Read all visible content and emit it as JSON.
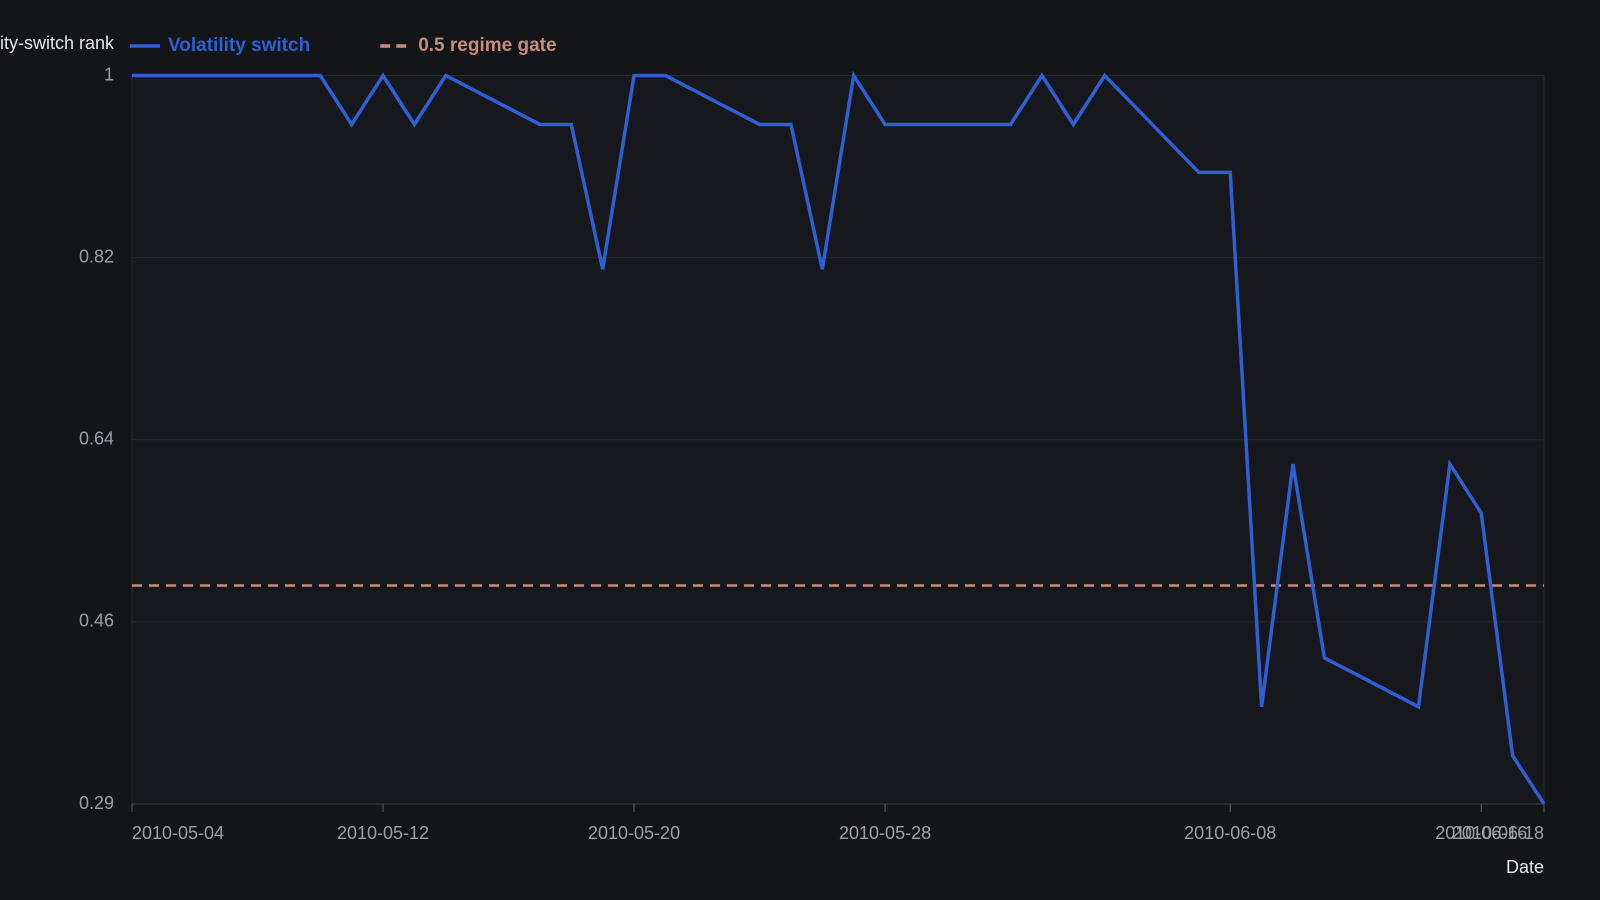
{
  "chart_data": {
    "type": "line",
    "y_label": "Volatility-switch rank",
    "x_label": "Date",
    "x": [
      "2010-05-04",
      "2010-05-05",
      "2010-05-06",
      "2010-05-07",
      "2010-05-10",
      "2010-05-11",
      "2010-05-12",
      "2010-05-13",
      "2010-05-14",
      "2010-05-17",
      "2010-05-18",
      "2010-05-19",
      "2010-05-20",
      "2010-05-21",
      "2010-05-24",
      "2010-05-25",
      "2010-05-26",
      "2010-05-27",
      "2010-05-28",
      "2010-06-01",
      "2010-06-02",
      "2010-06-03",
      "2010-06-04",
      "2010-06-07",
      "2010-06-08",
      "2010-06-09",
      "2010-06-10",
      "2010-06-11",
      "2010-06-14",
      "2010-06-15",
      "2010-06-16",
      "2010-06-17",
      "2010-06-18"
    ],
    "series": [
      {
        "name": "Volatility switch",
        "color": "#2f5fd3",
        "values": [
          1,
          1,
          1,
          1,
          1,
          0.952,
          1,
          0.952,
          1,
          0.952,
          0.952,
          0.81,
          1,
          1,
          0.952,
          0.952,
          0.81,
          1,
          0.952,
          0.952,
          1,
          0.952,
          1,
          0.905,
          0.905,
          0.381,
          0.619,
          0.429,
          0.381,
          0.619,
          0.571,
          0.333,
          0.286
        ]
      }
    ],
    "reference_lines": [
      {
        "name": "0.5 regime gate",
        "value": 0.5,
        "color": "#c98b7c"
      }
    ],
    "xlim": [
      "2010-05-04",
      "2010-06-18"
    ],
    "xticks": [
      "2010-05-04",
      "2010-05-12",
      "2010-05-20",
      "2010-05-28",
      "2010-06-08",
      "2010-06-16",
      "2010-06-18"
    ],
    "ylim": [
      0.2857,
      1
    ],
    "yticks": [
      {
        "value": 0.2857,
        "label": "0.29"
      },
      {
        "value": 0.4643,
        "label": "0.46"
      },
      {
        "value": 0.6429,
        "label": "0.64"
      },
      {
        "value": 0.8214,
        "label": "0.82"
      },
      1
    ],
    "grid": true
  }
}
